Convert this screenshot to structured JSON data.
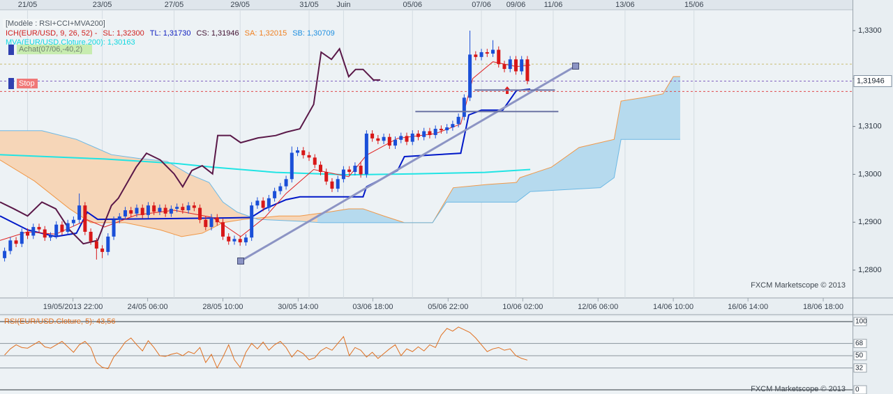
{
  "chart_data": [
    {
      "type": "candlestick",
      "title": "[Modèle : RSI+CCI+MVA200]",
      "legend_items": [
        {
          "text": "ICH(EUR/USD, 9, 26, 52) -",
          "color": "#d02020"
        },
        {
          "text": "SL: 1,32300",
          "color": "#d02020"
        },
        {
          "text": "TL: 1,31730",
          "color": "#1020c0"
        },
        {
          "text": "CS: 1,31946",
          "color": "#401030"
        },
        {
          "text": "SA: 1,32015",
          "color": "#f08020"
        },
        {
          "text": "SB: 1,30709",
          "color": "#2090e0"
        }
      ],
      "signals": [
        {
          "text": "Achat(07/06,-40,2)",
          "color": "#c8ecb0"
        },
        {
          "text": "Stop",
          "color": "#f07878"
        }
      ],
      "watermark": "FXCM Marketscope © 2013",
      "up_color": "#1a4fd8",
      "down_color": "#d81818",
      "grid": true,
      "xlim": [
        -5.8,
        142.6
      ],
      "xticks": [
        {
          "value": 6.9,
          "label": "19/05/2013 22:00"
        },
        {
          "value": 19.9,
          "label": "24/05 06:00"
        },
        {
          "value": 33.0,
          "label": "28/05 10:00"
        },
        {
          "value": 46.1,
          "label": "30/05 14:00"
        },
        {
          "value": 59.1,
          "label": "03/06 18:00"
        },
        {
          "value": 72.2,
          "label": "05/06 22:00"
        },
        {
          "value": 85.2,
          "label": "10/06 02:00"
        },
        {
          "value": 98.3,
          "label": "12/06 06:00"
        },
        {
          "value": 111.4,
          "label": "14/06 10:00"
        },
        {
          "value": 124.4,
          "label": "16/06 14:00"
        },
        {
          "value": 137.5,
          "label": "18/06 18:00"
        }
      ],
      "top_xticks": [
        {
          "value": -1,
          "label": "21/05"
        },
        {
          "value": 12,
          "label": "23/05"
        },
        {
          "value": 24.5,
          "label": "27/05"
        },
        {
          "value": 36,
          "label": "29/05"
        },
        {
          "value": 48,
          "label": "31/05"
        },
        {
          "value": 54,
          "label": "Juin"
        },
        {
          "value": 66,
          "label": "05/06"
        },
        {
          "value": 78,
          "label": "07/06"
        },
        {
          "value": 84,
          "label": "09/06"
        },
        {
          "value": 90.5,
          "label": "11/06"
        },
        {
          "value": 103,
          "label": "13/06"
        },
        {
          "value": 115,
          "label": "15/06"
        }
      ],
      "ylim": [
        1.27419,
        1.33436
      ],
      "yticks": [
        {
          "value": 1.28,
          "label": "1,2800"
        },
        {
          "value": 1.29,
          "label": "1,2900"
        },
        {
          "value": 1.3,
          "label": "1,3000"
        },
        {
          "value": 1.31,
          "label": "1,3100"
        },
        {
          "value": 1.32,
          "label": "1,3200"
        },
        {
          "value": 1.33,
          "label": "1,3300"
        }
      ],
      "price_marker": {
        "value": 1.31946,
        "label": "1,31946"
      },
      "x": [
        -5,
        -4,
        -3,
        -2,
        -1,
        0,
        1,
        2,
        3,
        4,
        5,
        6,
        7,
        8,
        9,
        10,
        11,
        12,
        13,
        14,
        15,
        16,
        17,
        18,
        19,
        20,
        21,
        22,
        23,
        24,
        25,
        26,
        27,
        28,
        29,
        30,
        31,
        32,
        33,
        34,
        35,
        36,
        37,
        38,
        39,
        40,
        41,
        42,
        43,
        44,
        45,
        46,
        47,
        48,
        49,
        50,
        51,
        52,
        53,
        54,
        55,
        56,
        57,
        58,
        59,
        60,
        61,
        62,
        63,
        64,
        65,
        66,
        67,
        68,
        69,
        70,
        71,
        72,
        73,
        74,
        75,
        76,
        77,
        78,
        79,
        80,
        81,
        82,
        83,
        84,
        85,
        86
      ],
      "open": [
        1.2825,
        1.284,
        1.2862,
        1.2855,
        1.288,
        1.2872,
        1.289,
        1.2885,
        1.2868,
        1.2872,
        1.2895,
        1.288,
        1.2898,
        1.2905,
        1.2935,
        1.288,
        1.286,
        1.2845,
        1.2838,
        1.287,
        1.2905,
        1.2912,
        1.2925,
        1.2918,
        1.293,
        1.2915,
        1.2935,
        1.2922,
        1.293,
        1.2918,
        1.2928,
        1.2932,
        1.2925,
        1.2935,
        1.293,
        1.2905,
        1.289,
        1.291,
        1.29,
        1.287,
        1.286,
        1.2865,
        1.2858,
        1.2868,
        1.2935,
        1.2945,
        1.293,
        1.295,
        1.2965,
        1.2975,
        1.299,
        1.3045,
        1.305,
        1.304,
        1.3035,
        1.302,
        1.3005,
        1.2985,
        1.297,
        1.299,
        1.301,
        1.3005,
        1.3018,
        1.3,
        1.3085,
        1.3075,
        1.307,
        1.3078,
        1.306,
        1.3072,
        1.308,
        1.3068,
        1.3085,
        1.3078,
        1.309,
        1.3082,
        1.3095,
        1.3092,
        1.3098,
        1.3105,
        1.312,
        1.316,
        1.325,
        1.3245,
        1.3255,
        1.3252,
        1.326,
        1.323,
        1.322,
        1.324,
        1.3215,
        1.324
      ],
      "high": [
        1.2847,
        1.2869,
        1.2869,
        1.2887,
        1.2887,
        1.2897,
        1.2897,
        1.2892,
        1.2879,
        1.2902,
        1.2902,
        1.2905,
        1.2912,
        1.296,
        1.2942,
        1.2887,
        1.2867,
        1.2852,
        1.2877,
        1.2912,
        1.2919,
        1.2932,
        1.2932,
        1.2937,
        1.2937,
        1.2942,
        1.2942,
        1.2937,
        1.2937,
        1.2935,
        1.2939,
        1.2939,
        1.2942,
        1.2942,
        1.2937,
        1.2912,
        1.2917,
        1.2917,
        1.2907,
        1.2877,
        1.2872,
        1.2872,
        1.2875,
        1.2942,
        1.2952,
        1.2952,
        1.2957,
        1.2972,
        1.2982,
        1.2997,
        1.3058,
        1.3057,
        1.3057,
        1.3047,
        1.3042,
        1.3027,
        1.3012,
        1.2992,
        1.2997,
        1.3017,
        1.3017,
        1.3025,
        1.3025,
        1.3092,
        1.3092,
        1.3082,
        1.3085,
        1.3085,
        1.3079,
        1.3087,
        1.3087,
        1.3092,
        1.3092,
        1.3097,
        1.3097,
        1.3102,
        1.3102,
        1.3105,
        1.3112,
        1.3127,
        1.3167,
        1.33,
        1.3257,
        1.3262,
        1.3262,
        1.328,
        1.3267,
        1.3237,
        1.3247,
        1.3247,
        1.3247,
        1.3247
      ],
      "low": [
        1.2818,
        1.2833,
        1.2848,
        1.2848,
        1.2865,
        1.2865,
        1.2878,
        1.2861,
        1.2861,
        1.2865,
        1.2873,
        1.2873,
        1.2891,
        1.2898,
        1.2873,
        1.2853,
        1.2822,
        1.2825,
        1.2831,
        1.2863,
        1.2898,
        1.2905,
        1.2911,
        1.2911,
        1.2908,
        1.2908,
        1.2915,
        1.2915,
        1.2911,
        1.2911,
        1.2921,
        1.2918,
        1.2918,
        1.2923,
        1.2898,
        1.2883,
        1.2883,
        1.2893,
        1.2863,
        1.2853,
        1.2853,
        1.2851,
        1.2851,
        1.2861,
        1.2928,
        1.2923,
        1.2923,
        1.2943,
        1.2958,
        1.2968,
        1.2983,
        1.3038,
        1.3033,
        1.3028,
        1.3013,
        1.2998,
        1.2978,
        1.2963,
        1.2963,
        1.2983,
        1.2998,
        1.2998,
        1.2993,
        1.2993,
        1.3068,
        1.3063,
        1.3063,
        1.3053,
        1.3053,
        1.3065,
        1.3061,
        1.3061,
        1.3071,
        1.3071,
        1.3075,
        1.3075,
        1.3085,
        1.3085,
        1.3091,
        1.3098,
        1.3113,
        1.3153,
        1.3238,
        1.3238,
        1.3245,
        1.3245,
        1.3223,
        1.3213,
        1.3213,
        1.3208,
        1.3208,
        1.3188
      ],
      "close": [
        1.284,
        1.2862,
        1.2855,
        1.288,
        1.2872,
        1.289,
        1.2885,
        1.2868,
        1.2872,
        1.2895,
        1.288,
        1.2898,
        1.2905,
        1.2935,
        1.288,
        1.286,
        1.2845,
        1.2838,
        1.287,
        1.2905,
        1.2912,
        1.2925,
        1.2918,
        1.293,
        1.2915,
        1.2935,
        1.2922,
        1.293,
        1.2918,
        1.2928,
        1.2932,
        1.2925,
        1.2935,
        1.293,
        1.2905,
        1.289,
        1.291,
        1.29,
        1.287,
        1.286,
        1.2865,
        1.2858,
        1.2868,
        1.2935,
        1.2945,
        1.293,
        1.295,
        1.2965,
        1.2975,
        1.299,
        1.3045,
        1.305,
        1.304,
        1.3035,
        1.302,
        1.3005,
        1.2985,
        1.297,
        1.299,
        1.301,
        1.3005,
        1.3018,
        1.3,
        1.3085,
        1.3075,
        1.307,
        1.3078,
        1.306,
        1.3072,
        1.308,
        1.3068,
        1.3085,
        1.3078,
        1.309,
        1.3082,
        1.3095,
        1.3092,
        1.3098,
        1.3105,
        1.312,
        1.316,
        1.325,
        1.3245,
        1.3255,
        1.3252,
        1.326,
        1.323,
        1.322,
        1.324,
        1.3215,
        1.324,
        1.3195
      ],
      "cloud": {
        "bear_fill": "#f6d6b8",
        "bull_fill": "#b6daee",
        "span_a": {
          "color": "#f09848",
          "x": [
            -5.8,
            0.2,
            6.3,
            10.0,
            16.0,
            22.1,
            25.8,
            29.4,
            33.0,
            36.6,
            42.8,
            46.4,
            51.3,
            54.9,
            57.4,
            61.0,
            64.6,
            69.5,
            73.1,
            79.2,
            84.1,
            84.7,
            90.2,
            95.0,
            101.1,
            102.3,
            106.0,
            109.6,
            111.4,
            112.6
          ],
          "values": [
            1.303,
            1.2986,
            1.2928,
            1.2899,
            1.2899,
            1.2884,
            1.287,
            1.2877,
            1.2899,
            1.2906,
            1.2913,
            1.2913,
            1.2921,
            1.2928,
            1.2928,
            1.2913,
            1.2899,
            1.2899,
            1.2972,
            1.2979,
            1.2983,
            1.2993,
            1.3015,
            1.3056,
            1.3073,
            1.3153,
            1.316,
            1.3168,
            1.3204,
            1.3204
          ]
        },
        "span_b": {
          "color": "#6cb8e4",
          "x": [
            -5.8,
            1.5,
            7.5,
            13.6,
            18.5,
            23.3,
            27.0,
            30.6,
            33.0,
            35.5,
            39.1,
            46.4,
            50.1,
            69.5,
            71.9,
            84.1,
            86.5,
            98.7,
            101.1,
            102.3,
            112.6
          ],
          "values": [
            1.3091,
            1.3091,
            1.3073,
            1.3041,
            1.3033,
            1.3027,
            1.3001,
            1.2983,
            1.2942,
            1.2921,
            1.2906,
            1.2902,
            1.2899,
            1.2899,
            1.2942,
            1.2942,
            1.2964,
            1.2972,
            1.2993,
            1.3073,
            1.3073
          ]
        }
      },
      "series": [
        {
          "name": "MVA(EUR/USD.Cloture,200): 1,30163",
          "color": "#20e4e4",
          "width": 2,
          "x": [
            -5.8,
            12.4,
            24.5,
            31.2,
            42.2,
            54.9,
            66.4,
            78.6,
            86.5
          ],
          "values": [
            1.3041,
            1.3032,
            1.3023,
            1.3015,
            1.3004,
            1.2999,
            1.3001,
            1.3004,
            1.301
          ]
        },
        {
          "color": "#0018c8",
          "width": 2,
          "x": [
            -5.8,
            -1.0,
            3.9,
            7.5,
            9.4,
            11.2,
            34.3,
            37.9,
            40.3,
            44.0,
            46.4,
            57.4,
            58.0,
            63.4,
            64.6,
            74.4,
            75.8,
            78.0,
            81.7,
            84.1,
            86.5
          ],
          "values": [
            1.2913,
            1.2884,
            1.287,
            1.2877,
            1.2921,
            1.2906,
            1.2909,
            1.291,
            1.2928,
            1.2947,
            1.2953,
            1.2953,
            1.2974,
            1.3008,
            1.3037,
            1.3044,
            1.3124,
            1.3134,
            1.3134,
            1.3175,
            1.3178
          ]
        },
        {
          "color": "#e02020",
          "width": 1,
          "x": [
            -5.8,
            -1.0,
            3.9,
            9.4,
            12.4,
            17.9,
            24.5,
            31.2,
            36.1,
            40.3,
            44.0,
            48.8,
            54.9,
            58.0,
            63.4,
            70.0,
            74.4,
            76.5,
            80.0,
            84.1,
            86.5
          ],
          "values": [
            1.2862,
            1.288,
            1.2875,
            1.2905,
            1.289,
            1.2915,
            1.2925,
            1.291,
            1.287,
            1.291,
            1.296,
            1.301,
            1.2995,
            1.304,
            1.3075,
            1.3085,
            1.3105,
            1.32,
            1.3235,
            1.3225,
            1.3228
          ]
        },
        {
          "color": "#5a1848",
          "width": 2,
          "x": [
            -5.8,
            -3.4,
            -1.0,
            1.5,
            3.9,
            6.3,
            8.7,
            11.2,
            12.4,
            13.6,
            14.8,
            17.9,
            19.7,
            22.1,
            24.5,
            26.0,
            27.6,
            29.4,
            31.2,
            32.1,
            34.3,
            36.1,
            39.1,
            42.2,
            44.0,
            46.4,
            48.8,
            50.1,
            51.9,
            53.3,
            54.9,
            56.1,
            57.4,
            59.2,
            60.4
          ],
          "values": [
            1.2942,
            1.2928,
            1.2913,
            1.2942,
            1.2928,
            1.2884,
            1.2855,
            1.2862,
            1.2899,
            1.2935,
            1.295,
            1.3015,
            1.3044,
            1.303,
            1.3001,
            1.2974,
            1.3008,
            1.3018,
            1.3001,
            1.3081,
            1.3081,
            1.3066,
            1.3076,
            1.3081,
            1.3088,
            1.3095,
            1.3146,
            1.3255,
            1.324,
            1.3262,
            1.3204,
            1.3219,
            1.3219,
            1.3197,
            1.3197
          ]
        }
      ],
      "trendline": {
        "color": "#8c94c4",
        "x": [
          36.1,
          94.4
        ],
        "values": [
          1.2819,
          1.3226
        ]
      },
      "segments": [
        {
          "color": "#6c74a4",
          "x": [
            66.5,
            91.4
          ],
          "values": [
            1.3131,
            1.3131
          ]
        },
        {
          "color": "#6c74a4",
          "x": [
            76.8,
            90.8
          ],
          "values": [
            1.3176,
            1.3176
          ]
        }
      ],
      "levels": [
        {
          "value": 1.323,
          "color": "#c8bc70"
        },
        {
          "value": 1.3173,
          "color": "#e04848"
        },
        {
          "value": 1.31946,
          "color": "#8060c0"
        }
      ]
    },
    {
      "type": "line",
      "title": "RSI(EUR/USD.Cloture, 5): 43,56",
      "watermark": "FXCM Marketscope © 2013",
      "ylim": [
        -6.1,
        107.1
      ],
      "yticks": [
        0,
        32,
        50,
        68,
        100
      ],
      "series": [
        {
          "color": "#e07020",
          "values": [
            51,
            60,
            66,
            62,
            61,
            66,
            71,
            63,
            61,
            66,
            71,
            63,
            55,
            66,
            71,
            62,
            40,
            33,
            31,
            48,
            58,
            70,
            76,
            66,
            57,
            72,
            62,
            50,
            49,
            52,
            54,
            50,
            56,
            53,
            62,
            40,
            52,
            32,
            48,
            66,
            44,
            33,
            55,
            68,
            60,
            70,
            58,
            66,
            71,
            62,
            48,
            58,
            53,
            44,
            47,
            57,
            62,
            58,
            68,
            78,
            50,
            62,
            58,
            48,
            55,
            46,
            53,
            60,
            66,
            50,
            60,
            56,
            63,
            57,
            66,
            62,
            80,
            90,
            86,
            92,
            88,
            84,
            76,
            66,
            56,
            60,
            62,
            58,
            60,
            50,
            46,
            43.56
          ]
        }
      ]
    }
  ]
}
